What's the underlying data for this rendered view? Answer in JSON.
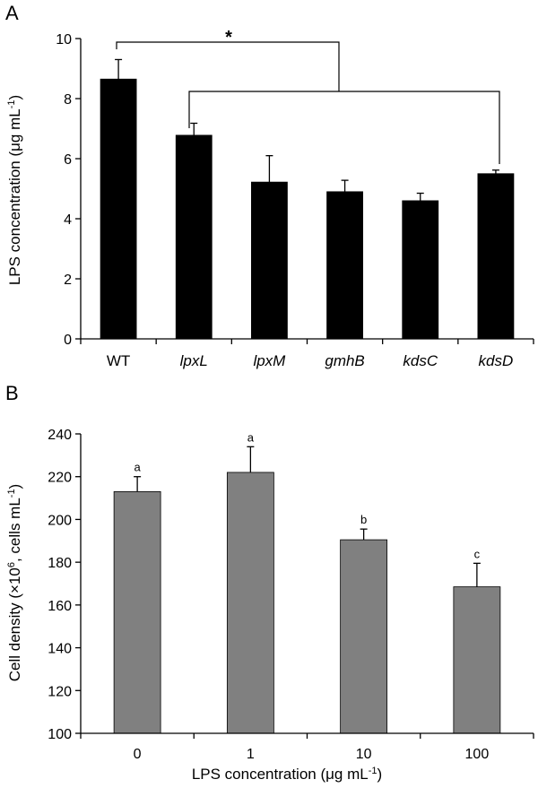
{
  "chart_data": [
    {
      "panel": "A",
      "type": "bar",
      "categories": [
        "WT",
        "lpxL",
        "lpxM",
        "gmhB",
        "kdsC",
        "kdsD"
      ],
      "category_style": [
        "normal",
        "italic",
        "italic",
        "italic",
        "italic",
        "italic"
      ],
      "values": [
        8.65,
        6.78,
        5.22,
        4.9,
        4.6,
        5.5
      ],
      "errors": [
        0.65,
        0.4,
        0.88,
        0.38,
        0.25,
        0.12
      ],
      "ylim": [
        0,
        10
      ],
      "yticks": [
        0,
        2,
        4,
        6,
        8,
        10
      ],
      "ylabel_main": "LPS concentration (μg mL",
      "ylabel_sup": "-1",
      "ylabel_end": ")",
      "xlabel": "",
      "bar_color": "#000000",
      "significance": {
        "label": "*",
        "groups": [
          "WT",
          "lpxL",
          "kdsD"
        ]
      }
    },
    {
      "panel": "B",
      "type": "bar",
      "categories": [
        "0",
        "1",
        "10",
        "100"
      ],
      "values": [
        213,
        222,
        190.5,
        168.5
      ],
      "errors": [
        7,
        12,
        5,
        11
      ],
      "letters": [
        "a",
        "a",
        "b",
        "c"
      ],
      "ylim": [
        100,
        240
      ],
      "yticks": [
        100,
        120,
        140,
        160,
        180,
        200,
        220,
        240
      ],
      "ylabel_main": "Cell density (×10",
      "ylabel_sup1": "6",
      "ylabel_mid": ", cells mL",
      "ylabel_sup2": "-1",
      "ylabel_end": ")",
      "xlabel_main": "LPS concentration (μg mL",
      "xlabel_sup": "-1",
      "xlabel_end": ")",
      "bar_color": "#808080"
    }
  ]
}
